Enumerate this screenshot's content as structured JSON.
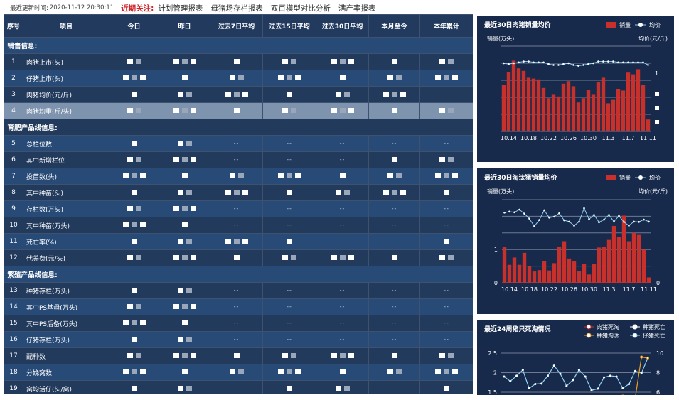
{
  "topbar": {
    "update_label": "最近更新时间:",
    "update_time": "2020-11-12 20:30:11",
    "focus_label": "近期关注:",
    "links": [
      "计划管理报表",
      "母猪场存栏报表",
      "双百模型对比分析",
      "满产率报表"
    ]
  },
  "table": {
    "headers": [
      "序号",
      "项目",
      "今日",
      "昨日",
      "过去7日平均",
      "过去15日平均",
      "过去30日平均",
      "本月至今",
      "本年累计"
    ],
    "rows": [
      {
        "section": "销售信息:"
      },
      {
        "no": "1",
        "item": "肉猪上市(头)",
        "cells": [
          null,
          null,
          null,
          null,
          null,
          null,
          null
        ]
      },
      {
        "no": "2",
        "item": "仔猪上市(头)",
        "cells": [
          null,
          null,
          null,
          null,
          null,
          null,
          null
        ]
      },
      {
        "no": "3",
        "item": "肉猪均价(元/斤)",
        "cells": [
          null,
          null,
          null,
          null,
          null,
          null,
          ""
        ]
      },
      {
        "no": "4",
        "item": "肉猪均重(斤/头)",
        "cells": [
          null,
          null,
          null,
          null,
          null,
          null,
          null
        ],
        "highlighted": true
      },
      {
        "section": "育肥产品线信息:"
      },
      {
        "no": "5",
        "item": "总栏位数",
        "cells": [
          null,
          null,
          "--",
          "--",
          "--",
          "--",
          "--"
        ]
      },
      {
        "no": "6",
        "item": "其中新增栏位",
        "cells": [
          null,
          null,
          "--",
          "--",
          "--",
          null,
          null
        ]
      },
      {
        "no": "7",
        "item": "投苗数(头)",
        "cells": [
          null,
          null,
          null,
          null,
          null,
          null,
          null
        ]
      },
      {
        "no": "8",
        "item": "其中种苗(头)",
        "cells": [
          null,
          null,
          null,
          null,
          null,
          null,
          null
        ]
      },
      {
        "no": "9",
        "item": "存栏数(万头)",
        "cells": [
          null,
          null,
          "--",
          "--",
          "--",
          "--",
          "--"
        ]
      },
      {
        "no": "10",
        "item": "其中种苗(万头)",
        "cells": [
          null,
          null,
          "--",
          "--",
          "--",
          "--",
          "--"
        ]
      },
      {
        "no": "11",
        "item": "死亡率(%)",
        "cells": [
          null,
          null,
          null,
          null,
          "",
          "",
          null
        ]
      },
      {
        "no": "12",
        "item": "代养费(元/头)",
        "cells": [
          null,
          null,
          null,
          null,
          null,
          null,
          null
        ]
      },
      {
        "section": "繁殖产品线信息:"
      },
      {
        "no": "13",
        "item": "种猪存栏(万头)",
        "cells": [
          null,
          null,
          "--",
          "--",
          "--",
          "--",
          "--"
        ]
      },
      {
        "no": "14",
        "item": "其中PS基母(万头)",
        "cells": [
          null,
          null,
          "--",
          "--",
          "--",
          "--",
          "--"
        ]
      },
      {
        "no": "15",
        "item": "其中PS后备(万头)",
        "cells": [
          null,
          null,
          "--",
          "--",
          "--",
          "--",
          "--"
        ]
      },
      {
        "no": "16",
        "item": "仔猪存栏(万头)",
        "cells": [
          null,
          null,
          "--",
          "--",
          "--",
          "--",
          "--"
        ]
      },
      {
        "no": "17",
        "item": "配种数",
        "cells": [
          null,
          null,
          null,
          null,
          null,
          null,
          null
        ]
      },
      {
        "no": "18",
        "item": "分娩窝数",
        "cells": [
          null,
          null,
          null,
          null,
          null,
          null,
          null
        ]
      },
      {
        "no": "19",
        "item": "窝均活仔(头/窝)",
        "cells": [
          null,
          null,
          "",
          null,
          null,
          "",
          null
        ]
      }
    ]
  },
  "colors": {
    "bar": "#c8302c",
    "line": "#8fd3f5",
    "orange": "#f0a020",
    "panel_bg": "#172a4c"
  },
  "chart_data": [
    {
      "type": "bar+line",
      "title": "最近30日肉猪销量均价",
      "legend": [
        "销量",
        "均价"
      ],
      "legend_position": "top-right",
      "ylabel": "销量(万头)",
      "y2label": "均价(元/斤)",
      "y2_ticks": [
        "1"
      ],
      "xticks": [
        "10.14",
        "10.18",
        "10.22",
        "10.26",
        "10.30",
        "11.3",
        "11.7",
        "11.11"
      ],
      "bar_values_relative": [
        55,
        70,
        83,
        74,
        71,
        63,
        62,
        61,
        51,
        39,
        43,
        41,
        56,
        59,
        53,
        34,
        39,
        49,
        43,
        58,
        63,
        33,
        37,
        50,
        48,
        69,
        67,
        73,
        55,
        14
      ],
      "line_values_relative": [
        80,
        79,
        80,
        81,
        82,
        82,
        81,
        81,
        81,
        79,
        78,
        78,
        79,
        80,
        78,
        77,
        78,
        79,
        80,
        82,
        82,
        82,
        82,
        81,
        81,
        81,
        81,
        81,
        81,
        78
      ],
      "ylim": [
        0,
        100
      ],
      "grid": true
    },
    {
      "type": "bar+line",
      "title": "最近30日淘汰猪销量均价",
      "legend": [
        "销量",
        "均价"
      ],
      "legend_position": "top-right",
      "ylabel": "销量(万头)",
      "y2label": "均价(元/斤)",
      "y_ticks": [
        "0",
        "1"
      ],
      "y2_ticks": [
        "0"
      ],
      "xticks": [
        "10.14",
        "10.18",
        "10.22",
        "10.26",
        "10.30",
        "11.3",
        "11.7",
        "11.11"
      ],
      "bar_values": [
        1.07,
        0.54,
        0.76,
        0.54,
        0.9,
        0.5,
        0.34,
        0.38,
        0.66,
        0.37,
        0.59,
        1.09,
        1.25,
        0.73,
        0.64,
        0.36,
        0.56,
        0.25,
        0.56,
        1.06,
        1.09,
        1.29,
        1.71,
        1.37,
        2.02,
        1.25,
        1.5,
        1.44,
        1.0,
        0.16
      ],
      "line_values_relative": [
        2.11,
        2.14,
        2.12,
        2.2,
        2.08,
        1.93,
        1.7,
        1.89,
        2.18,
        1.96,
        1.99,
        2.09,
        1.88,
        1.84,
        1.72,
        1.84,
        2.24,
        1.91,
        2.04,
        1.82,
        1.9,
        2.04,
        1.84,
        2.01,
        1.83,
        1.72,
        1.84,
        1.83,
        1.9,
        1.84
      ],
      "ylim": [
        0,
        2.5
      ],
      "grid": true
    },
    {
      "type": "line",
      "title": "最近24周猪只死淘情况",
      "legend": [
        "肉猪死淘",
        "种猪死亡",
        "种猪淘汰",
        "仔猪死亡"
      ],
      "legend_position": "top-right",
      "y_ticks": [
        "2.5",
        "2",
        "1.5"
      ],
      "y2_ticks": [
        "10",
        "8",
        "6"
      ],
      "ylim": [
        1.5,
        2.5
      ],
      "y2lim": [
        6,
        10
      ],
      "series": [
        {
          "name": "仔猪死亡",
          "axis": "left",
          "values": [
            1.9,
            1.78,
            1.92,
            2.07,
            1.6,
            1.71,
            1.72,
            1.92,
            2.18,
            1.97,
            1.66,
            1.81,
            2.07,
            1.9,
            1.55,
            1.59,
            1.88,
            1.92,
            1.9,
            1.6,
            1.71,
            2.04,
            1.99,
            2.37
          ]
        },
        {
          "name": "种猪淘汰",
          "axis": "right",
          "values": [
            null,
            null,
            null,
            null,
            null,
            null,
            null,
            null,
            null,
            null,
            null,
            null,
            null,
            null,
            null,
            null,
            null,
            null,
            null,
            5.6,
            null,
            null,
            9.6,
            9.5
          ]
        }
      ]
    }
  ]
}
